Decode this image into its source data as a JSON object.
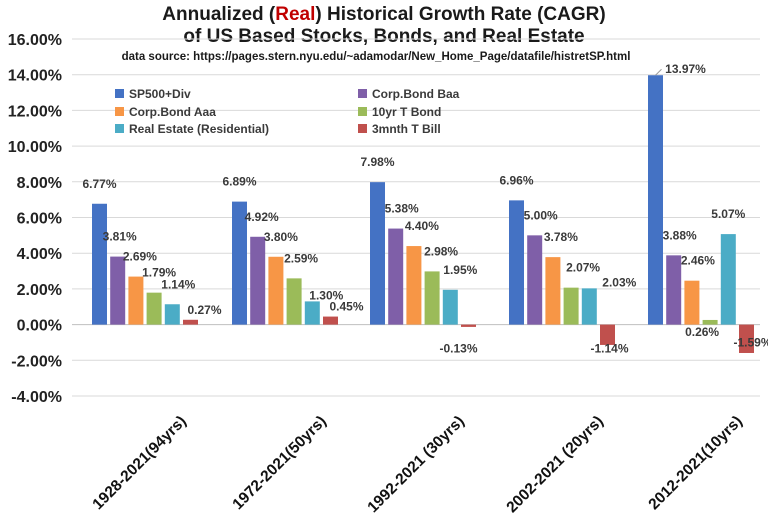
{
  "chart_data": {
    "type": "bar",
    "title_parts": [
      "Annualized (",
      "Real",
      ") Historical Growth Rate (CAGR)"
    ],
    "title_line2": "of US Based Stocks, Bonds, and Real Estate",
    "subtitle": "data source: https://pages.stern.nyu.edu/~adamodar/New_Home_Page/datafile/histretSP.html",
    "categories": [
      "1928-2021(94yrs)",
      "1972-2021(50yrs)",
      "1992-2021 (30yrs)",
      "2002-2021 (20yrs)",
      "2012-2021(10yrs)"
    ],
    "series": [
      {
        "name": "SP500+Div",
        "color": "#4472c4",
        "values": [
          6.77,
          6.89,
          7.98,
          6.96,
          13.97
        ]
      },
      {
        "name": "Corp.Bond Baa",
        "color": "#7f5fa8",
        "values": [
          3.81,
          4.92,
          5.38,
          5.0,
          3.88
        ]
      },
      {
        "name": "Corp.Bond Aaa",
        "color": "#f79646",
        "values": [
          2.69,
          3.8,
          4.4,
          3.78,
          2.46
        ]
      },
      {
        "name": "10yr T Bond",
        "color": "#9bbb59",
        "values": [
          1.79,
          2.59,
          2.98,
          2.07,
          0.26
        ]
      },
      {
        "name": "Real Estate (Residential)",
        "color": "#4bacc6",
        "values": [
          1.14,
          1.3,
          1.95,
          2.03,
          5.07
        ]
      },
      {
        "name": "3mnth T Bill",
        "color": "#c0504d",
        "values": [
          0.27,
          0.45,
          -0.13,
          -1.14,
          -1.59
        ]
      }
    ],
    "labels": [
      [
        "6.77%",
        "3.81%",
        "2.69%",
        "1.79%",
        "1.14%",
        "0.27%"
      ],
      [
        "6.89%",
        "4.92%",
        "3.80%",
        "2.59%",
        "1.30%",
        "0.45%"
      ],
      [
        "7.98%",
        "5.38%",
        "4.40%",
        "2.98%",
        "1.95%",
        "-0.13%"
      ],
      [
        "6.96%",
        "5.00%",
        "3.78%",
        "2.07%",
        "2.03%",
        "-1.14%"
      ],
      [
        "13.97%",
        "3.88%",
        "2.46%",
        "0.26%",
        "5.07%",
        "-1.59%"
      ]
    ],
    "yticks": [
      "16.00%",
      "14.00%",
      "12.00%",
      "10.00%",
      "8.00%",
      "6.00%",
      "4.00%",
      "2.00%",
      "0.00%",
      "-2.00%",
      "-4.00%"
    ],
    "ylim": [
      -4,
      16
    ],
    "ystep": 2,
    "grid": true,
    "legend": "top-left"
  }
}
